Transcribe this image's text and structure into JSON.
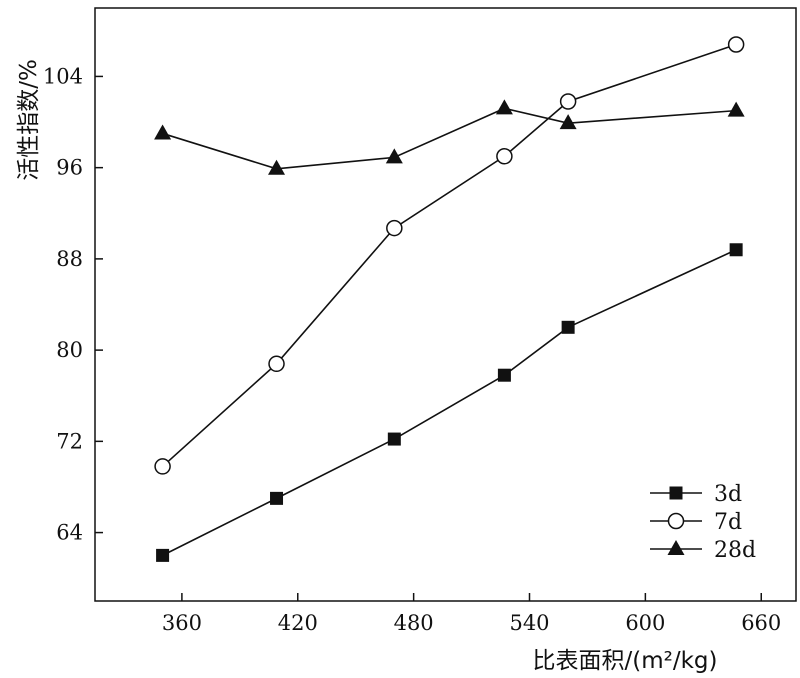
{
  "chart_data": {
    "type": "line",
    "xlabel": "比表面积/(m²/kg)",
    "ylabel": "活性指数/%",
    "xlim": [
      315,
      678
    ],
    "ylim": [
      58,
      110
    ],
    "xticks": [
      360,
      420,
      480,
      540,
      600,
      660
    ],
    "yticks": [
      64,
      72,
      80,
      88,
      96,
      104
    ],
    "grid": false,
    "legend": "bottom-right",
    "series": [
      {
        "name": "3d",
        "marker": "square-filled",
        "color": "#111111",
        "points": [
          [
            350,
            62.0
          ],
          [
            409,
            67.0
          ],
          [
            470,
            72.2
          ],
          [
            527,
            77.8
          ],
          [
            560,
            82.0
          ],
          [
            647,
            88.8
          ]
        ]
      },
      {
        "name": "7d",
        "marker": "circle-open",
        "color": "#111111",
        "points": [
          [
            350,
            69.8
          ],
          [
            409,
            78.8
          ],
          [
            470,
            90.7
          ],
          [
            527,
            97.0
          ],
          [
            560,
            101.8
          ],
          [
            647,
            106.8
          ]
        ]
      },
      {
        "name": "28d",
        "marker": "triangle-filled",
        "color": "#111111",
        "points": [
          [
            350,
            99.0
          ],
          [
            409,
            95.9
          ],
          [
            470,
            96.9
          ],
          [
            527,
            101.2
          ],
          [
            560,
            99.9
          ],
          [
            647,
            101.0
          ]
        ]
      }
    ]
  }
}
